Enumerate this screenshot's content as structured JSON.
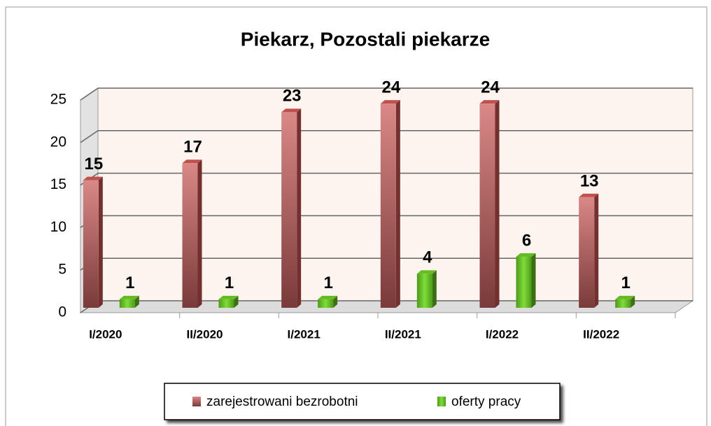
{
  "chart_data": {
    "type": "bar",
    "title": "Piekarz, Pozostali piekarze",
    "categories": [
      "I/2020",
      "II/2020",
      "I/2021",
      "II/2021",
      "I/2022",
      "II/2022"
    ],
    "series": [
      {
        "name": "zarejestrowani bezrobotni",
        "color": "#c0504d",
        "values": [
          15,
          17,
          23,
          24,
          24,
          13
        ]
      },
      {
        "name": "oferty pracy",
        "color": "#66bb22",
        "values": [
          1,
          1,
          1,
          4,
          6,
          1
        ]
      }
    ],
    "ylim": [
      0,
      25
    ],
    "yticks": [
      0,
      5,
      10,
      15,
      20,
      25
    ],
    "grid": true,
    "legend": "bottom"
  }
}
